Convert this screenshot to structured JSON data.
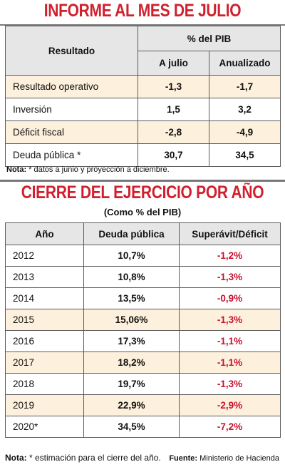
{
  "section1": {
    "title": "INFORME AL MES DE JULIO",
    "headers": {
      "resultado": "Resultado",
      "pib": "% del PIB",
      "a_julio": "A julio",
      "anualizado": "Anualizado"
    },
    "rows": [
      {
        "label": "Resultado operativo",
        "a_julio": "-1,3",
        "anualizado": "-1,7"
      },
      {
        "label": "Inversión",
        "a_julio": "1,5",
        "anualizado": "3,2"
      },
      {
        "label": "Déficit fiscal",
        "a_julio": "-2,8",
        "anualizado": "-4,9"
      },
      {
        "label": "Deuda pública *",
        "a_julio": "30,7",
        "anualizado": "34,5"
      }
    ],
    "note_label": "Nota:",
    "note_text": " * datos a junio y proyección a diciembre."
  },
  "section2": {
    "title": "CIERRE DEL EJERCICIO POR AÑO",
    "subtitle": "(Como % del PIB)",
    "headers": {
      "anio": "Año",
      "deuda": "Deuda pública",
      "superavit": "Superávit/Déficit"
    },
    "rows": [
      {
        "year": "2012",
        "deuda": "10,7%",
        "saldo": "-1,2%"
      },
      {
        "year": "2013",
        "deuda": "10,8%",
        "saldo": "-1,3%"
      },
      {
        "year": "2014",
        "deuda": "13,5%",
        "saldo": "-0,9%"
      },
      {
        "year": "2015",
        "deuda": "15,06%",
        "saldo": "-1,3%"
      },
      {
        "year": "2016",
        "deuda": "17,3%",
        "saldo": "-1,1%"
      },
      {
        "year": "2017",
        "deuda": "18,2%",
        "saldo": "-1,1%"
      },
      {
        "year": "2018",
        "deuda": "19,7%",
        "saldo": "-1,3%"
      },
      {
        "year": "2019",
        "deuda": "22,9%",
        "saldo": "-2,9%"
      },
      {
        "year": "2020*",
        "deuda": "34,5%",
        "saldo": "-7,2%"
      }
    ],
    "note_label": "Nota:",
    "note_text": " * estimación para el cierre del año.",
    "source_label": "Fuente:",
    "source_text": " Ministerio de Hacienda"
  },
  "colors": {
    "title_red": "#d0202e",
    "negative_red": "#c8102e",
    "row_tan": "#fdf0dc",
    "header_gray": "#e6e6e6"
  }
}
